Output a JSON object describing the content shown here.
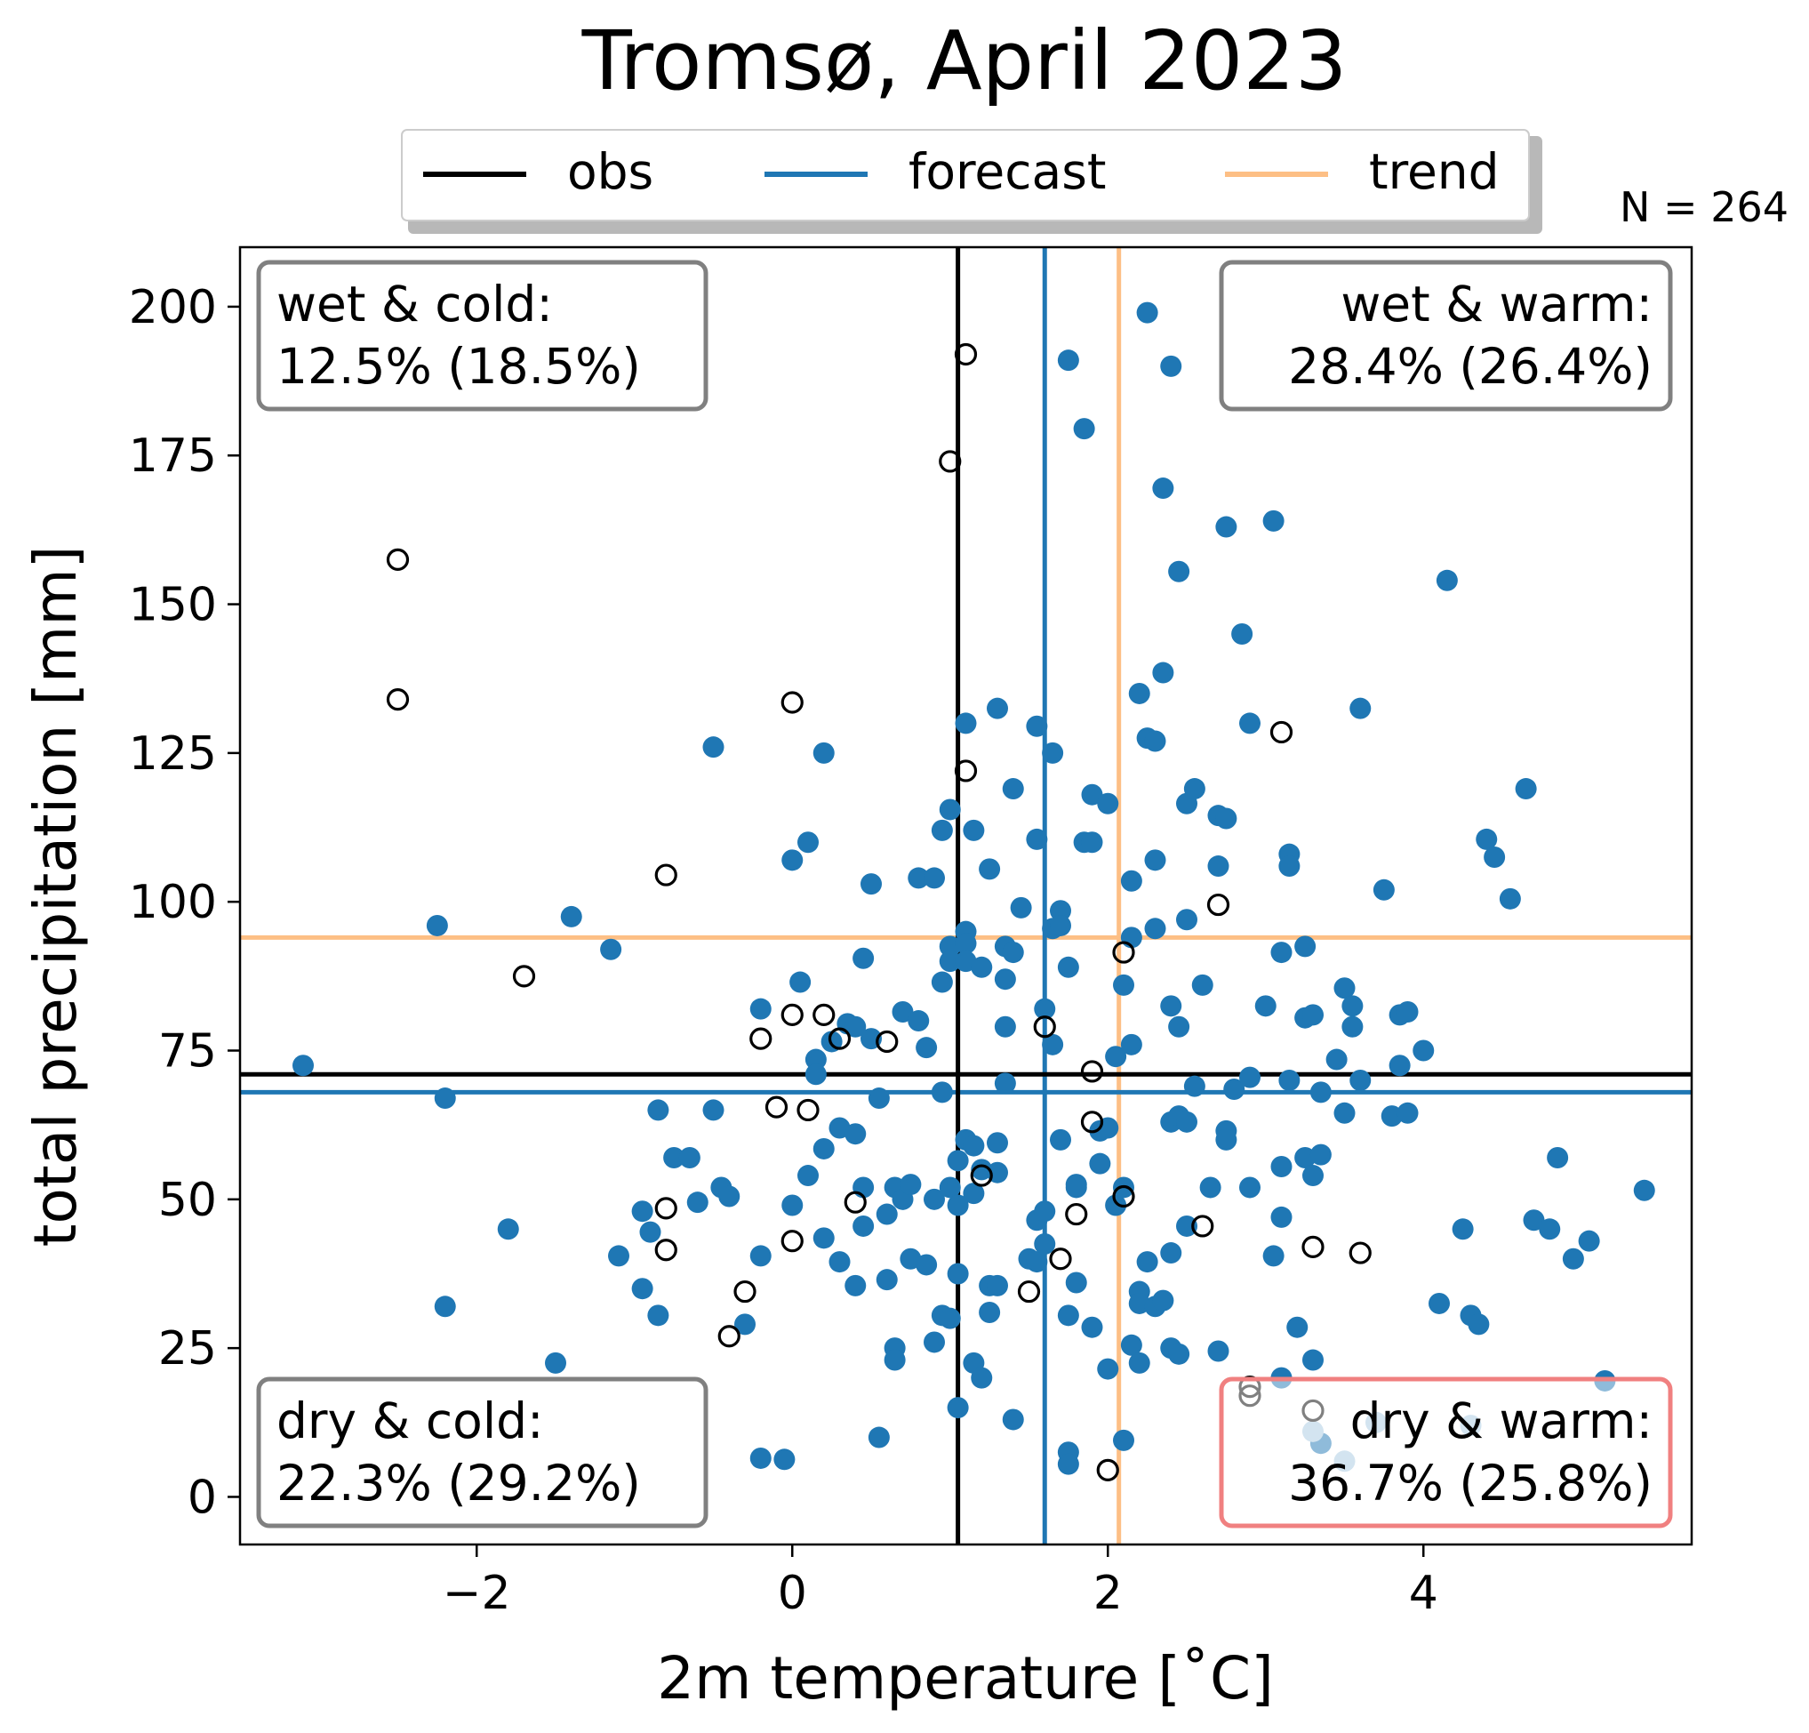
{
  "chart_data": {
    "type": "scatter",
    "title": "Tromsø, April 2023",
    "xlabel": "2m temperature [˚C]",
    "ylabel": "total precipitation [mm]",
    "xlim": [
      -3.5,
      5.7
    ],
    "ylim": [
      -8,
      210
    ],
    "x_ticks": [
      -2,
      0,
      2,
      4
    ],
    "x_tick_labels": [
      "−2",
      "0",
      "2",
      "4"
    ],
    "y_ticks": [
      0,
      25,
      50,
      75,
      100,
      125,
      150,
      175,
      200
    ],
    "y_tick_labels": [
      "0",
      "25",
      "50",
      "75",
      "100",
      "125",
      "150",
      "175",
      "200"
    ],
    "grid": false,
    "legend_position": "top-center, above plot, horizontal",
    "legend": [
      {
        "label": "obs",
        "color": "#000000"
      },
      {
        "label": "forecast",
        "color": "#1f77b4"
      },
      {
        "label": "trend",
        "color": "#fdbf85"
      }
    ],
    "n_label": "N = 264",
    "reference_lines": {
      "obs": {
        "x": 1.05,
        "y": 71,
        "color": "#000000"
      },
      "forecast": {
        "x": 1.6,
        "y": 68,
        "color": "#1f77b4"
      },
      "trend": {
        "x": 2.07,
        "y": 94,
        "color": "#fdbf85"
      }
    },
    "quadrants": [
      {
        "position": "top-left",
        "line1": "wet & cold:",
        "line2": "12.5% (18.5%)",
        "border": "#808080"
      },
      {
        "position": "top-right",
        "line1": "wet & warm:",
        "line2": "28.4% (26.4%)",
        "border": "#808080"
      },
      {
        "position": "bottom-left",
        "line1": "dry & cold:",
        "line2": "22.3% (29.2%)",
        "border": "#808080"
      },
      {
        "position": "bottom-right",
        "line1": "dry & warm:",
        "line2": "36.7% (25.8%)",
        "border": "#f08080"
      }
    ],
    "series": [
      {
        "name": "forecast",
        "marker": "filled-circle",
        "color": "#1f77b4",
        "points": [
          [
            -3.1,
            72.5
          ],
          [
            -2.25,
            96
          ],
          [
            -2.2,
            67
          ],
          [
            -2.2,
            32
          ],
          [
            -1.8,
            45
          ],
          [
            -1.5,
            22.5
          ],
          [
            -1.4,
            97.5
          ],
          [
            -1.15,
            92
          ],
          [
            -1.1,
            40.5
          ],
          [
            -0.95,
            48
          ],
          [
            -0.95,
            35
          ],
          [
            -0.9,
            44.5
          ],
          [
            -0.85,
            65
          ],
          [
            -0.85,
            30.5
          ],
          [
            -0.75,
            57
          ],
          [
            -0.65,
            57
          ],
          [
            -0.6,
            49.5
          ],
          [
            -0.5,
            126
          ],
          [
            -0.5,
            65
          ],
          [
            -0.45,
            52
          ],
          [
            -0.4,
            50.5
          ],
          [
            -0.3,
            29
          ],
          [
            -0.2,
            82
          ],
          [
            -0.2,
            40.5
          ],
          [
            -0.2,
            6.5
          ],
          [
            -0.05,
            6.3
          ],
          [
            0.0,
            107
          ],
          [
            0.0,
            49
          ],
          [
            0.05,
            86.5
          ],
          [
            0.1,
            54
          ],
          [
            0.1,
            110
          ],
          [
            0.15,
            73.5
          ],
          [
            0.15,
            71
          ],
          [
            0.2,
            125
          ],
          [
            0.2,
            58.5
          ],
          [
            0.2,
            43.5
          ],
          [
            0.25,
            76.5
          ],
          [
            0.3,
            62
          ],
          [
            0.3,
            39.5
          ],
          [
            0.35,
            79.5
          ],
          [
            0.4,
            79
          ],
          [
            0.4,
            61
          ],
          [
            0.4,
            35.5
          ],
          [
            0.45,
            90.5
          ],
          [
            0.45,
            52
          ],
          [
            0.45,
            45.5
          ],
          [
            0.5,
            103
          ],
          [
            0.5,
            77
          ],
          [
            0.55,
            67
          ],
          [
            0.55,
            10
          ],
          [
            0.6,
            47.5
          ],
          [
            0.6,
            36.5
          ],
          [
            0.65,
            52
          ],
          [
            0.65,
            25
          ],
          [
            0.65,
            23
          ],
          [
            0.7,
            81.5
          ],
          [
            0.7,
            50
          ],
          [
            0.75,
            52.5
          ],
          [
            0.75,
            40
          ],
          [
            0.8,
            80
          ],
          [
            0.8,
            104
          ],
          [
            0.85,
            75.5
          ],
          [
            0.85,
            39
          ],
          [
            0.9,
            104
          ],
          [
            0.9,
            50
          ],
          [
            0.9,
            26
          ],
          [
            0.95,
            112
          ],
          [
            0.95,
            30.5
          ],
          [
            0.95,
            86.5
          ],
          [
            0.95,
            68
          ],
          [
            1.0,
            115.5
          ],
          [
            1.0,
            92.5
          ],
          [
            1.0,
            90
          ],
          [
            1.0,
            52
          ],
          [
            1.0,
            30
          ],
          [
            1.05,
            49
          ],
          [
            1.05,
            56.5
          ],
          [
            1.05,
            37.5
          ],
          [
            1.05,
            15
          ],
          [
            1.1,
            130
          ],
          [
            1.1,
            95
          ],
          [
            1.1,
            93
          ],
          [
            1.1,
            90
          ],
          [
            1.1,
            60
          ],
          [
            1.15,
            112
          ],
          [
            1.15,
            59
          ],
          [
            1.15,
            51
          ],
          [
            1.15,
            22.5
          ],
          [
            1.2,
            89
          ],
          [
            1.2,
            55
          ],
          [
            1.2,
            20
          ],
          [
            1.25,
            105.5
          ],
          [
            1.25,
            35.5
          ],
          [
            1.25,
            31
          ],
          [
            1.3,
            132.5
          ],
          [
            1.3,
            59.5
          ],
          [
            1.3,
            54.5
          ],
          [
            1.3,
            35.5
          ],
          [
            1.35,
            92.5
          ],
          [
            1.35,
            87
          ],
          [
            1.35,
            79
          ],
          [
            1.35,
            69.5
          ],
          [
            1.4,
            119
          ],
          [
            1.4,
            91.5
          ],
          [
            1.4,
            13
          ],
          [
            1.45,
            99
          ],
          [
            1.5,
            40
          ],
          [
            1.55,
            129.5
          ],
          [
            1.55,
            110.5
          ],
          [
            1.55,
            46.5
          ],
          [
            1.55,
            39.5
          ],
          [
            1.6,
            82
          ],
          [
            1.6,
            42.5
          ],
          [
            1.6,
            48
          ],
          [
            1.65,
            125
          ],
          [
            1.65,
            95.5
          ],
          [
            1.65,
            76
          ],
          [
            1.7,
            98.5
          ],
          [
            1.7,
            96
          ],
          [
            1.7,
            60
          ],
          [
            1.75,
            191
          ],
          [
            1.75,
            89
          ],
          [
            1.75,
            30.5
          ],
          [
            1.75,
            7.5
          ],
          [
            1.75,
            5.5
          ],
          [
            1.8,
            52.5
          ],
          [
            1.8,
            52
          ],
          [
            1.8,
            36
          ],
          [
            1.85,
            179.5
          ],
          [
            1.85,
            110
          ],
          [
            1.9,
            110
          ],
          [
            1.9,
            118
          ],
          [
            1.9,
            28.5
          ],
          [
            1.95,
            61.5
          ],
          [
            1.95,
            56
          ],
          [
            2.0,
            116.5
          ],
          [
            2.0,
            62
          ],
          [
            2.0,
            21.5
          ],
          [
            2.05,
            74
          ],
          [
            2.05,
            49
          ],
          [
            2.1,
            86
          ],
          [
            2.1,
            52
          ],
          [
            2.1,
            9.5
          ],
          [
            2.15,
            94
          ],
          [
            2.15,
            103.5
          ],
          [
            2.15,
            76
          ],
          [
            2.15,
            25.5
          ],
          [
            2.2,
            135
          ],
          [
            2.2,
            34.5
          ],
          [
            2.2,
            32.5
          ],
          [
            2.2,
            22.5
          ],
          [
            2.25,
            199
          ],
          [
            2.25,
            127.5
          ],
          [
            2.25,
            39.5
          ],
          [
            2.3,
            107
          ],
          [
            2.3,
            95.5
          ],
          [
            2.3,
            127
          ],
          [
            2.3,
            32
          ],
          [
            2.35,
            169.5
          ],
          [
            2.35,
            138.5
          ],
          [
            2.35,
            33
          ],
          [
            2.4,
            190
          ],
          [
            2.4,
            82.5
          ],
          [
            2.4,
            63
          ],
          [
            2.4,
            41
          ],
          [
            2.4,
            25
          ],
          [
            2.45,
            155.5
          ],
          [
            2.45,
            79
          ],
          [
            2.45,
            64
          ],
          [
            2.45,
            24
          ],
          [
            2.5,
            116.5
          ],
          [
            2.5,
            97
          ],
          [
            2.5,
            45.5
          ],
          [
            2.5,
            63
          ],
          [
            2.55,
            119
          ],
          [
            2.55,
            69
          ],
          [
            2.6,
            86
          ],
          [
            2.65,
            52
          ],
          [
            2.7,
            106
          ],
          [
            2.7,
            114.5
          ],
          [
            2.7,
            24.5
          ],
          [
            2.75,
            114
          ],
          [
            2.75,
            163
          ],
          [
            2.75,
            61.5
          ],
          [
            2.75,
            60
          ],
          [
            2.8,
            68.5
          ],
          [
            2.85,
            145
          ],
          [
            2.9,
            130
          ],
          [
            2.9,
            70.5
          ],
          [
            2.9,
            52
          ],
          [
            3.0,
            82.5
          ],
          [
            3.05,
            164
          ],
          [
            3.05,
            40.5
          ],
          [
            3.1,
            91.5
          ],
          [
            3.1,
            55.5
          ],
          [
            3.1,
            47
          ],
          [
            3.1,
            20
          ],
          [
            3.15,
            108
          ],
          [
            3.15,
            106
          ],
          [
            3.15,
            70
          ],
          [
            3.2,
            28.5
          ],
          [
            3.25,
            92.5
          ],
          [
            3.25,
            80.5
          ],
          [
            3.25,
            57
          ],
          [
            3.3,
            81
          ],
          [
            3.3,
            54
          ],
          [
            3.3,
            23
          ],
          [
            3.35,
            57.5
          ],
          [
            3.35,
            68
          ],
          [
            3.35,
            9
          ],
          [
            3.45,
            73.5
          ],
          [
            3.5,
            85.5
          ],
          [
            3.5,
            64.5
          ],
          [
            3.55,
            82.5
          ],
          [
            3.55,
            79
          ],
          [
            3.6,
            132.5
          ],
          [
            3.6,
            70
          ],
          [
            3.75,
            102
          ],
          [
            3.8,
            64
          ],
          [
            3.85,
            72.5
          ],
          [
            3.85,
            81
          ],
          [
            3.9,
            81.5
          ],
          [
            3.9,
            64.5
          ],
          [
            4.0,
            75
          ],
          [
            4.1,
            32.5
          ],
          [
            4.15,
            154
          ],
          [
            4.25,
            45
          ],
          [
            4.3,
            30.5
          ],
          [
            4.35,
            29
          ],
          [
            4.4,
            110.5
          ],
          [
            4.45,
            107.5
          ],
          [
            4.55,
            100.5
          ],
          [
            4.65,
            119
          ],
          [
            4.7,
            46.5
          ],
          [
            4.8,
            45
          ],
          [
            4.85,
            57
          ],
          [
            4.95,
            40
          ],
          [
            5.05,
            43
          ],
          [
            5.15,
            19.5
          ],
          [
            5.4,
            51.5
          ]
        ]
      },
      {
        "name": "forecast (faded)",
        "marker": "filled-circle",
        "color": "#a6c8e0",
        "points": [
          [
            3.3,
            11
          ],
          [
            3.5,
            6
          ],
          [
            3.7,
            12.5
          ],
          [
            4.3,
            12
          ]
        ]
      },
      {
        "name": "obs",
        "marker": "open-circle",
        "color": "#000000",
        "points": [
          [
            -2.5,
            157.5
          ],
          [
            -2.5,
            134
          ],
          [
            -1.7,
            87.5
          ],
          [
            -0.8,
            104.5
          ],
          [
            -0.8,
            48.5
          ],
          [
            -0.8,
            41.5
          ],
          [
            -0.4,
            27
          ],
          [
            -0.3,
            34.5
          ],
          [
            -0.2,
            77
          ],
          [
            -0.1,
            65.5
          ],
          [
            0.0,
            81
          ],
          [
            0.0,
            43
          ],
          [
            0.0,
            133.5
          ],
          [
            0.1,
            65
          ],
          [
            0.2,
            81
          ],
          [
            0.3,
            77
          ],
          [
            0.4,
            49.5
          ],
          [
            0.6,
            76.5
          ],
          [
            1.0,
            174
          ],
          [
            1.1,
            192
          ],
          [
            1.1,
            122
          ],
          [
            1.2,
            54
          ],
          [
            1.5,
            34.5
          ],
          [
            1.6,
            79
          ],
          [
            1.7,
            40
          ],
          [
            1.8,
            47.5
          ],
          [
            1.9,
            71.5
          ],
          [
            1.9,
            63
          ],
          [
            2.0,
            4.5
          ],
          [
            2.1,
            91.5
          ],
          [
            2.1,
            50.5
          ],
          [
            2.6,
            45.5
          ],
          [
            2.7,
            99.5
          ],
          [
            2.9,
            18.5
          ],
          [
            2.9,
            17
          ],
          [
            3.1,
            128.5
          ],
          [
            3.3,
            42
          ],
          [
            3.3,
            14.5
          ],
          [
            3.6,
            41
          ]
        ]
      }
    ]
  }
}
